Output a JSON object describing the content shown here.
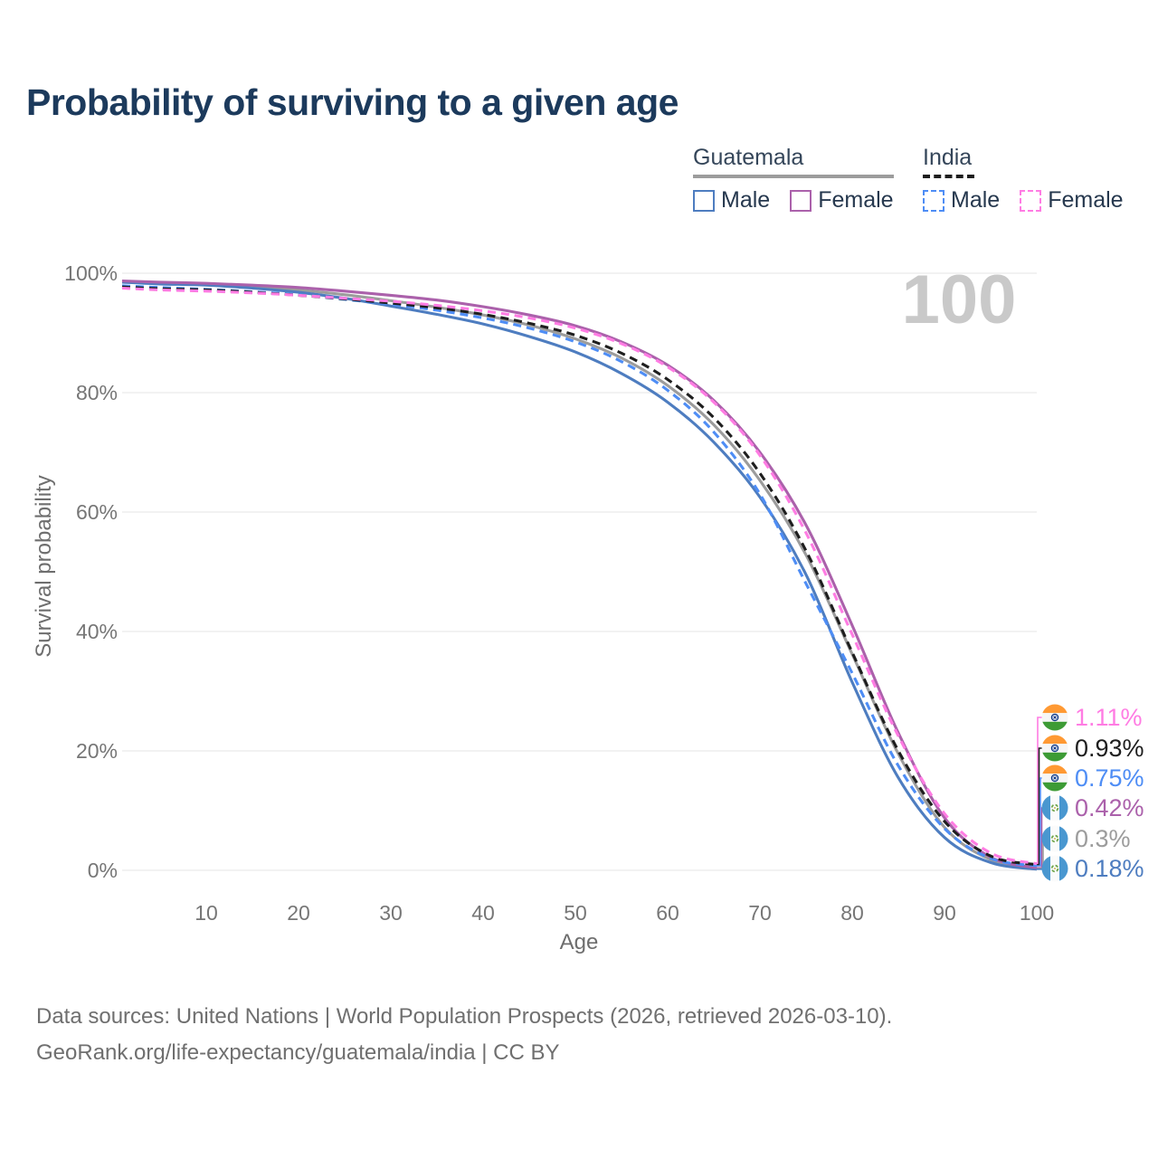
{
  "title": "Probability of surviving to a given age",
  "watermark_hover_age": "100",
  "legend": {
    "groups": [
      {
        "label": "Guatemala",
        "line_style": "solid",
        "underline_color": "#9c9c9c",
        "items": [
          {
            "label": "Male",
            "series": "guatemala_male"
          },
          {
            "label": "Female",
            "series": "guatemala_female"
          }
        ]
      },
      {
        "label": "India",
        "line_style": "dashed",
        "underline_color": "#1e1e1e",
        "items": [
          {
            "label": "Male",
            "series": "india_male"
          },
          {
            "label": "Female",
            "series": "india_female"
          }
        ]
      }
    ]
  },
  "y_axis": {
    "label": "Survival probability",
    "ticks": [
      "100%",
      "80%",
      "60%",
      "40%",
      "20%",
      "0%"
    ]
  },
  "x_axis": {
    "label": "Age",
    "ticks": [
      "10",
      "20",
      "30",
      "40",
      "50",
      "60",
      "70",
      "80",
      "90",
      "100"
    ]
  },
  "end_labels": [
    {
      "value": "1.11%",
      "series": "india_female",
      "flag": "india"
    },
    {
      "value": "0.93%",
      "series": "india_total",
      "flag": "india"
    },
    {
      "value": "0.75%",
      "series": "india_male",
      "flag": "india"
    },
    {
      "value": "0.42%",
      "series": "guatemala_female",
      "flag": "guatemala"
    },
    {
      "value": "0.3%",
      "series": "guatemala_total",
      "flag": "guatemala"
    },
    {
      "value": "0.18%",
      "series": "guatemala_male",
      "flag": "guatemala"
    }
  ],
  "footer": {
    "line1": "Data sources: United Nations | World Population Prospects (2026, retrieved 2026-03-10).",
    "line2": "GeoRank.org/life-expectancy/guatemala/india | CC BY"
  },
  "chart_data": {
    "type": "line",
    "title": "Probability of surviving to a given age",
    "xlabel": "Age",
    "ylabel": "Survival probability",
    "xlim": [
      0,
      100
    ],
    "ylim_percent": [
      0,
      100
    ],
    "grid": "horizontal",
    "x": [
      0,
      5,
      10,
      15,
      20,
      25,
      30,
      35,
      40,
      45,
      50,
      55,
      60,
      65,
      70,
      75,
      80,
      85,
      90,
      95,
      100
    ],
    "series": [
      {
        "key": "guatemala_total",
        "name": "Guatemala",
        "color": "#9c9c9c",
        "dash": false,
        "values": [
          98.6,
          98.3,
          98.1,
          97.8,
          97.2,
          96.4,
          95.4,
          94.3,
          93.0,
          91.3,
          89.0,
          85.8,
          81.2,
          74.6,
          65.3,
          52.8,
          36.2,
          19.5,
          7.2,
          1.8,
          0.3
        ]
      },
      {
        "key": "guatemala_male",
        "name": "Guatemala Male",
        "color": "#4e7dc0",
        "dash": false,
        "values": [
          98.5,
          98.2,
          98.0,
          97.5,
          96.8,
          95.8,
          94.5,
          93.1,
          91.5,
          89.4,
          86.8,
          83.2,
          78.4,
          71.7,
          62.5,
          49.5,
          31.5,
          15.5,
          5.5,
          1.3,
          0.18
        ]
      },
      {
        "key": "guatemala_female",
        "name": "Guatemala Female",
        "color": "#ab61ab",
        "dash": false,
        "values": [
          98.7,
          98.5,
          98.3,
          98.0,
          97.6,
          97.0,
          96.3,
          95.5,
          94.4,
          93.0,
          91.2,
          88.5,
          84.6,
          78.7,
          70.0,
          57.8,
          41.0,
          23.0,
          8.8,
          2.2,
          0.42
        ]
      },
      {
        "key": "india_male",
        "name": "India Male",
        "color": "#4e8df5",
        "dash": true,
        "values": [
          97.9,
          97.6,
          97.3,
          96.9,
          96.4,
          95.6,
          94.8,
          93.8,
          92.5,
          90.8,
          88.5,
          85.2,
          80.4,
          73.4,
          63.0,
          48.0,
          33.0,
          17.5,
          7.0,
          2.0,
          0.75
        ]
      },
      {
        "key": "india_total",
        "name": "India",
        "color": "#1e1e1e",
        "dash": true,
        "values": [
          97.7,
          97.4,
          97.2,
          96.8,
          96.3,
          95.7,
          95.0,
          94.2,
          93.1,
          91.6,
          89.6,
          86.6,
          82.2,
          75.8,
          66.5,
          53.5,
          36.5,
          20.0,
          8.2,
          2.4,
          0.93
        ]
      },
      {
        "key": "india_female",
        "name": "India Female",
        "color": "#ff7ce3",
        "dash": true,
        "values": [
          97.5,
          97.2,
          97.0,
          96.7,
          96.3,
          95.8,
          95.3,
          94.6,
          93.7,
          92.5,
          90.8,
          88.2,
          84.3,
          78.4,
          69.5,
          56.5,
          39.5,
          22.5,
          9.5,
          2.9,
          1.11
        ]
      }
    ],
    "end_values_at_age_100": {
      "india_female": 1.11,
      "india_total": 0.93,
      "india_male": 0.75,
      "guatemala_female": 0.42,
      "guatemala_total": 0.3,
      "guatemala_male": 0.18
    }
  }
}
